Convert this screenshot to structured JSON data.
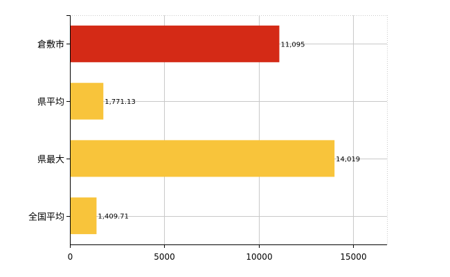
{
  "chart_data": {
    "type": "bar",
    "orientation": "horizontal",
    "title": "",
    "xlabel": "",
    "ylabel": "",
    "categories": [
      "倉敷市",
      "県平均",
      "県最大",
      "全国平均"
    ],
    "values": [
      11095,
      1771.13,
      14019,
      1409.71
    ],
    "data_labels": [
      "11,095",
      "1,771.13",
      "14,019",
      "1,409.71"
    ],
    "x_ticks": [
      0,
      5000,
      10000,
      15000
    ],
    "x_tick_labels": [
      "0",
      "5000",
      "10000",
      "15000"
    ],
    "xlim": [
      0,
      16800
    ],
    "grid": true,
    "legend": "none",
    "colors": {
      "highlight": "#d42a16",
      "default": "#f8c43b",
      "grid": "#c8c8c8",
      "axis": "#000000"
    },
    "bar_colors": [
      "highlight",
      "default",
      "default",
      "default"
    ]
  }
}
